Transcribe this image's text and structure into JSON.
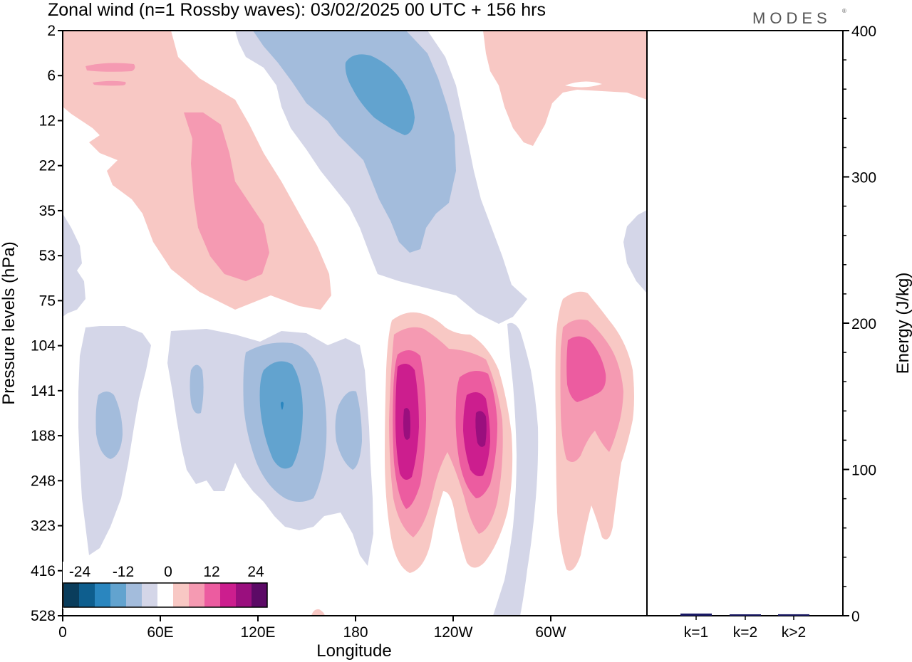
{
  "chart_data": {
    "type": "heatmap",
    "title": "Zonal wind (n=1 Rossby waves):  03/02/2025  00 UTC  + 156 hrs",
    "logo": "MODES",
    "xlabel": "Longitude",
    "ylabel": "Pressure levels (hPa)",
    "x_ticks": [
      "0",
      "60E",
      "120E",
      "180",
      "120W",
      "60W"
    ],
    "y_ticks": [
      "2",
      "6",
      "12",
      "22",
      "35",
      "53",
      "75",
      "104",
      "141",
      "188",
      "248",
      "323",
      "416",
      "528"
    ],
    "colorbar": {
      "labels": [
        "-24",
        "-12",
        "0",
        "12",
        "24"
      ],
      "colors": [
        "#0a3d5c",
        "#0e5e8e",
        "#2a86bf",
        "#62a3cf",
        "#a3bcdc",
        "#d4d6e8",
        "#ffffff",
        "#f8c8c4",
        "#f59ab2",
        "#ec5ca0",
        "#cc1e8e",
        "#9a0f7e",
        "#5c0a66"
      ]
    },
    "colorscale": {
      "neg3": "#2a86bf",
      "neg2": "#62a3cf",
      "neg1": "#a3bcdc",
      "neg0": "#d4d6e8",
      "pos0": "#f8c8c4",
      "pos1": "#f59ab2",
      "pos2": "#ec5ca0",
      "pos3": "#cc1e8e",
      "pos4": "#9a0f7e",
      "pos5": "#5c0a66"
    },
    "energy": {
      "ylabel": "Energy (J/kg)",
      "ylim": [
        0,
        400
      ],
      "y_ticks": [
        "0",
        "100",
        "200",
        "300",
        "400"
      ],
      "categories": [
        "k=1",
        "k=2",
        "k>2"
      ],
      "values": [
        1.5,
        0.8,
        1.0
      ],
      "bar_color": "#1a1a66"
    }
  }
}
